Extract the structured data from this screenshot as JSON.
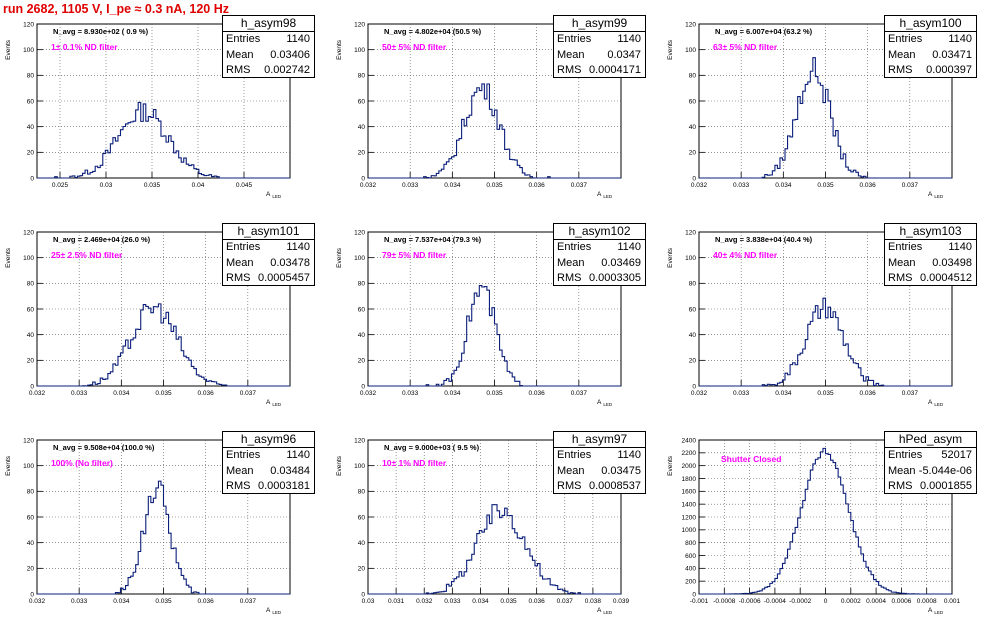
{
  "run_title": "run 2682,  1105 V, I_pe ≈ 0.3 nA, 120 Hz",
  "stat_labels": {
    "entries": "Entries",
    "mean": "Mean",
    "rms": "RMS"
  },
  "y_axis_title": "Events",
  "x_axis_title": "A",
  "x_axis_subscript": "LED",
  "colors": {
    "histogram": "#0b1f7a",
    "filter_text": "#ff00ff",
    "run_title": "#e00000"
  },
  "chart_data": [
    {
      "type": "histogram",
      "name": "h_asym98",
      "stats": {
        "entries": "1140",
        "mean": "0.03406",
        "rms": "0.002742"
      },
      "navg_text": "N_avg = 8.930e+02 ( 0.9 %)",
      "filter_text": "1± 0.1% ND filter",
      "xlim": [
        0.0225,
        0.05
      ],
      "ylim": [
        0,
        120
      ],
      "xticks": [
        0.025,
        0.03,
        0.035,
        0.04,
        0.045
      ],
      "xticklabels": [
        "0.025",
        "0.03",
        "0.035",
        "0.04",
        "0.045"
      ],
      "yticks": [
        0,
        20,
        40,
        60,
        80,
        100,
        120
      ],
      "mean": 0.03406,
      "rms": 0.002742,
      "entries": 1140,
      "peak": 52,
      "grid": true
    },
    {
      "type": "histogram",
      "name": "h_asym99",
      "stats": {
        "entries": "1140",
        "mean": "0.0347",
        "rms": "0.0004171"
      },
      "navg_text": "N_avg = 4.802e+04 (50.5 %)",
      "filter_text": "50± 5% ND filter",
      "xlim": [
        0.032,
        0.038
      ],
      "ylim": [
        0,
        120
      ],
      "xticks": [
        0.032,
        0.033,
        0.034,
        0.035,
        0.036,
        0.037
      ],
      "xticklabels": [
        "0.032",
        "0.033",
        "0.034",
        "0.035",
        "0.036",
        "0.037"
      ],
      "yticks": [
        0,
        20,
        40,
        60,
        80,
        100,
        120
      ],
      "mean": 0.0347,
      "rms": 0.0004171,
      "entries": 1140,
      "peak": 70,
      "grid": true
    },
    {
      "type": "histogram",
      "name": "h_asym100",
      "stats": {
        "entries": "1140",
        "mean": "0.03471",
        "rms": "0.000397"
      },
      "navg_text": "N_avg = 6.007e+04 (63.2 %)",
      "filter_text": "63± 5% ND filter",
      "xlim": [
        0.032,
        0.038
      ],
      "ylim": [
        0,
        120
      ],
      "xticks": [
        0.032,
        0.033,
        0.034,
        0.035,
        0.036,
        0.037
      ],
      "xticklabels": [
        "0.032",
        "0.033",
        "0.034",
        "0.035",
        "0.036",
        "0.037"
      ],
      "yticks": [
        0,
        20,
        40,
        60,
        80,
        100,
        120
      ],
      "mean": 0.03471,
      "rms": 0.000397,
      "entries": 1140,
      "peak": 84,
      "grid": true
    },
    {
      "type": "histogram",
      "name": "h_asym101",
      "stats": {
        "entries": "1140",
        "mean": "0.03478",
        "rms": "0.0005457"
      },
      "navg_text": "N_avg = 2.469e+04 (26.0 %)",
      "filter_text": "25± 2.5% ND filter",
      "xlim": [
        0.032,
        0.038
      ],
      "ylim": [
        0,
        120
      ],
      "xticks": [
        0.032,
        0.033,
        0.034,
        0.035,
        0.036,
        0.037
      ],
      "xticklabels": [
        "0.032",
        "0.033",
        "0.034",
        "0.035",
        "0.036",
        "0.037"
      ],
      "yticks": [
        0,
        20,
        40,
        60,
        80,
        100,
        120
      ],
      "mean": 0.03478,
      "rms": 0.0005457,
      "entries": 1140,
      "peak": 61,
      "grid": true
    },
    {
      "type": "histogram",
      "name": "h_asym102",
      "stats": {
        "entries": "1140",
        "mean": "0.03469",
        "rms": "0.0003305"
      },
      "navg_text": "N_avg = 7.537e+04 (79.3 %)",
      "filter_text": "79± 5% ND filter",
      "xlim": [
        0.032,
        0.038
      ],
      "ylim": [
        0,
        120
      ],
      "xticks": [
        0.032,
        0.033,
        0.034,
        0.035,
        0.036,
        0.037
      ],
      "xticklabels": [
        "0.032",
        "0.033",
        "0.034",
        "0.035",
        "0.036",
        "0.037"
      ],
      "yticks": [
        0,
        20,
        40,
        60,
        80,
        100,
        120
      ],
      "mean": 0.03469,
      "rms": 0.0003305,
      "entries": 1140,
      "peak": 76,
      "grid": true
    },
    {
      "type": "histogram",
      "name": "h_asym103",
      "stats": {
        "entries": "1140",
        "mean": "0.03498",
        "rms": "0.0004512"
      },
      "navg_text": "N_avg = 3.838e+04 (40.4 %)",
      "filter_text": "40± 4% ND filter",
      "xlim": [
        0.032,
        0.038
      ],
      "ylim": [
        0,
        120
      ],
      "xticks": [
        0.032,
        0.033,
        0.034,
        0.035,
        0.036,
        0.037
      ],
      "xticklabels": [
        "0.032",
        "0.033",
        "0.034",
        "0.035",
        "0.036",
        "0.037"
      ],
      "yticks": [
        0,
        20,
        40,
        60,
        80,
        100,
        120
      ],
      "mean": 0.03498,
      "rms": 0.0004512,
      "entries": 1140,
      "peak": 60,
      "grid": true
    },
    {
      "type": "histogram",
      "name": "h_asym96",
      "stats": {
        "entries": "1140",
        "mean": "0.03484",
        "rms": "0.0003181"
      },
      "navg_text": "N_avg = 9.508e+04 (100.0 %)",
      "filter_text": "100% (No filter)",
      "xlim": [
        0.032,
        0.038
      ],
      "ylim": [
        0,
        120
      ],
      "xticks": [
        0.032,
        0.033,
        0.034,
        0.035,
        0.036,
        0.037
      ],
      "xticklabels": [
        "0.032",
        "0.033",
        "0.034",
        "0.035",
        "0.036",
        "0.037"
      ],
      "yticks": [
        0,
        20,
        40,
        60,
        80,
        100,
        120
      ],
      "mean": 0.03484,
      "rms": 0.0003181,
      "entries": 1140,
      "peak": 82,
      "grid": true
    },
    {
      "type": "histogram",
      "name": "h_asym97",
      "stats": {
        "entries": "1140",
        "mean": "0.03475",
        "rms": "0.0008537"
      },
      "navg_text": "N_avg = 9.000e+03 ( 9.5 %)",
      "filter_text": "10± 1% ND filter",
      "xlim": [
        0.03,
        0.039
      ],
      "ylim": [
        0,
        120
      ],
      "xticks": [
        0.03,
        0.031,
        0.032,
        0.033,
        0.034,
        0.035,
        0.036,
        0.037,
        0.038,
        0.039
      ],
      "xticklabels": [
        "0.03",
        "0.031",
        "0.032",
        "0.033",
        "0.034",
        "0.035",
        "0.036",
        "0.037",
        "0.038",
        "0.039"
      ],
      "yticks": [
        0,
        20,
        40,
        60,
        80,
        100,
        120
      ],
      "mean": 0.03475,
      "rms": 0.0008537,
      "entries": 1140,
      "peak": 65,
      "grid": true
    },
    {
      "type": "histogram",
      "name": "hPed_asym",
      "stats": {
        "entries": "52017",
        "mean": "-5.044e-06",
        "rms": "0.0001855"
      },
      "navg_text": "",
      "filter_text": "Shutter Closed",
      "xlim": [
        -0.001,
        0.001
      ],
      "ylim": [
        0,
        2400
      ],
      "xticks": [
        -0.001,
        -0.0008,
        -0.0006,
        -0.0004,
        -0.0002,
        0,
        0.0002,
        0.0004,
        0.0006,
        0.0008,
        0.001
      ],
      "xticklabels": [
        "-0.001",
        "-0.0008",
        "-0.0006",
        "-0.0004",
        "-0.0002",
        "0",
        "0.0002",
        "0.0004",
        "0.0006",
        "0.0008",
        "0.001"
      ],
      "yticks": [
        0,
        200,
        400,
        600,
        800,
        1000,
        1200,
        1400,
        1600,
        1800,
        2000,
        2200,
        2400
      ],
      "mean": -5.044e-06,
      "rms": 0.0001855,
      "entries": 52017,
      "peak": 2220,
      "grid": true
    }
  ]
}
